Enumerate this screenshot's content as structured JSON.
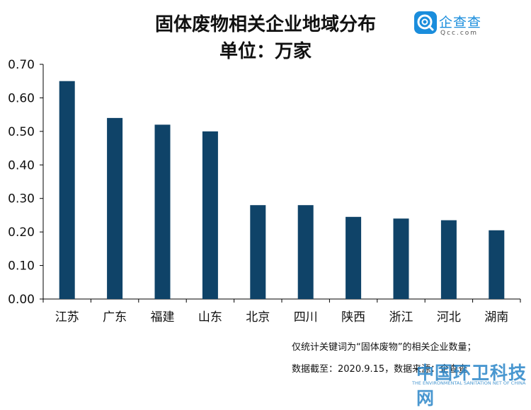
{
  "header": {
    "title": "固体废物相关企业地域分布",
    "unit": "单位：万家"
  },
  "logo": {
    "name": "企查查",
    "domain": "Qcc.com"
  },
  "notes": {
    "line1": "仅统计关键词为“固体废物”的相关企业数量；",
    "line2": "数据截至：2020.9.15，数据来源：企查查"
  },
  "watermark": {
    "main": "中国环卫科技网",
    "sub": "THE ENVIRONMENTAL SANITATION NET OF CHINA"
  },
  "colors": {
    "bar": "#0f4368",
    "axis": "#000000"
  },
  "chart_data": {
    "type": "bar",
    "categories": [
      "江苏",
      "广东",
      "福建",
      "山东",
      "北京",
      "四川",
      "陕西",
      "浙江",
      "河北",
      "湖南"
    ],
    "values": [
      0.65,
      0.54,
      0.52,
      0.5,
      0.28,
      0.28,
      0.245,
      0.24,
      0.235,
      0.205
    ],
    "ylim": [
      0,
      0.7
    ],
    "yticks": [
      "0.00",
      "0.10",
      "0.20",
      "0.30",
      "0.40",
      "0.50",
      "0.60",
      "0.70"
    ],
    "grid": false,
    "title": "固体废物相关企业地域分布",
    "ylabel": "单位：万家"
  }
}
